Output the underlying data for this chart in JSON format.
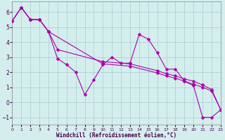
{
  "xlabel": "Windchill (Refroidissement éolien,°C)",
  "background_color": "#d4eeee",
  "line_color": "#aa00aa",
  "xlim": [
    0,
    23
  ],
  "ylim": [
    -1.5,
    6.7
  ],
  "yticks": [
    -1,
    0,
    1,
    2,
    3,
    4,
    5,
    6
  ],
  "xticks": [
    0,
    1,
    2,
    3,
    4,
    5,
    6,
    7,
    8,
    9,
    10,
    11,
    12,
    13,
    14,
    15,
    16,
    17,
    18,
    19,
    20,
    21,
    22,
    23
  ],
  "main_x": [
    0,
    1,
    2,
    3,
    4,
    5,
    6,
    7,
    8,
    9,
    10,
    11,
    12,
    13,
    14,
    15,
    16,
    17,
    18,
    19,
    20,
    21,
    22,
    23
  ],
  "main_y": [
    5.4,
    6.3,
    5.5,
    5.5,
    4.7,
    2.9,
    2.5,
    2.0,
    0.5,
    1.5,
    2.5,
    3.0,
    2.6,
    2.6,
    4.5,
    4.2,
    3.3,
    2.2,
    2.2,
    1.4,
    1.1,
    -1.0,
    -1.0,
    -0.5
  ],
  "trend1_x": [
    0,
    1,
    2,
    3,
    4,
    5,
    10,
    13,
    16,
    17,
    18,
    19,
    20,
    21,
    22,
    23
  ],
  "trend1_y": [
    5.4,
    6.3,
    5.5,
    5.5,
    4.7,
    3.5,
    2.7,
    2.55,
    2.1,
    1.9,
    1.75,
    1.55,
    1.4,
    1.15,
    0.85,
    -0.5
  ],
  "trend2_x": [
    0,
    1,
    2,
    3,
    4,
    10,
    13,
    16,
    17,
    18,
    19,
    20,
    21,
    22,
    23
  ],
  "trend2_y": [
    5.4,
    6.3,
    5.5,
    5.5,
    4.7,
    2.55,
    2.4,
    1.95,
    1.75,
    1.6,
    1.4,
    1.2,
    1.0,
    0.75,
    -0.5
  ],
  "grid_color": "#aacccc",
  "marker_size": 2.5,
  "lw": 0.8
}
